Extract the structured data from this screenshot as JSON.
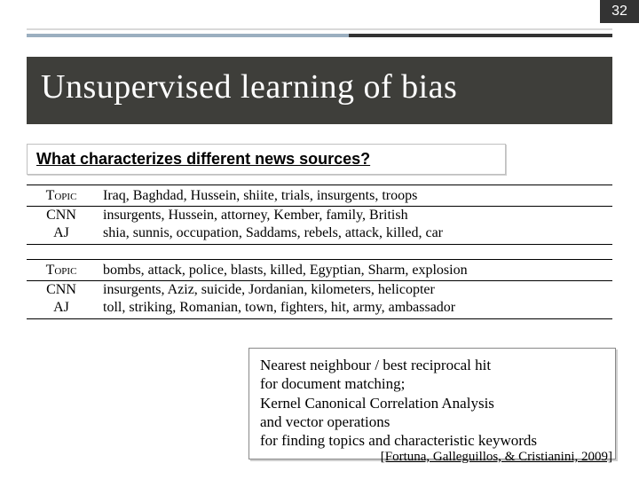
{
  "page_number": "32",
  "title": "Unsupervised learning of bias",
  "question": "What characterizes different news sources?",
  "groups": [
    {
      "rows": [
        {
          "label": "Topic",
          "words": "Iraq, Baghdad, Hussein, shiite, trials, insurgents, troops"
        },
        {
          "label": "CNN",
          "words": "insurgents, Hussein, attorney, Kember, family, British"
        },
        {
          "label": "AJ",
          "words": "shia, sunnis, occupation, Saddams, rebels, attack, killed, car"
        }
      ]
    },
    {
      "rows": [
        {
          "label": "Topic",
          "words": "bombs, attack, police, blasts, killed, Egyptian, Sharm, explosion"
        },
        {
          "label": "CNN",
          "words": "insurgents, Aziz, suicide, Jordanian, kilometers, helicopter"
        },
        {
          "label": "AJ",
          "words": "toll, striking, Romanian, town, fighters, hit, army, ambassador"
        }
      ]
    }
  ],
  "method_lines": [
    "Nearest neighbour / best reciprocal hit",
    "for document matching;",
    "Kernel Canonical Correlation Analysis",
    "and vector operations",
    "for finding topics and characteristic keywords"
  ],
  "citation": "[Fortuna, Galleguillos, & Cristianini, 2009]",
  "colors": {
    "page_number_bg": "#333333",
    "title_bg": "#3e3e3a",
    "rule_light": "#d9d9d9",
    "rule_dark_left": "#9bafc0",
    "rule_dark_right": "#333333"
  }
}
